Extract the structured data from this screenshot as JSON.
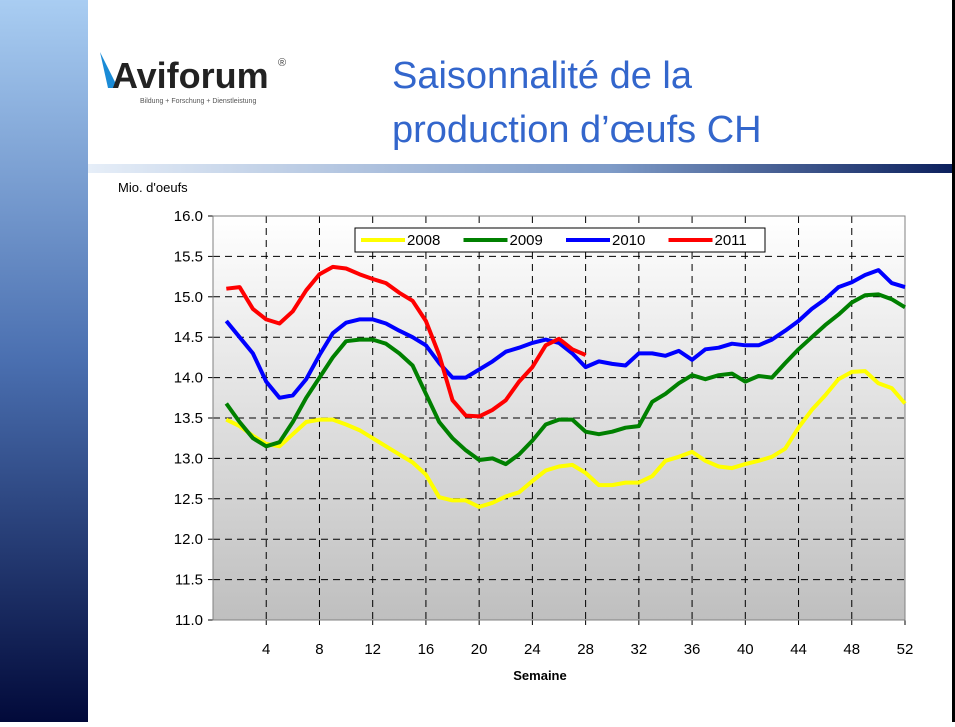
{
  "slide": {
    "title_lines": [
      "Saisonnalité de la",
      "production d’œufs CH"
    ],
    "logo": "Aviforum",
    "logo_mark": "®",
    "logo_tagline": "Bildung + Forschung + Dienstleistung"
  },
  "chart_data": {
    "type": "line",
    "ylabel": "Mio. d'oeufs",
    "xlabel": "Semaine",
    "x": [
      1,
      2,
      3,
      4,
      5,
      6,
      7,
      8,
      9,
      10,
      11,
      12,
      13,
      14,
      15,
      16,
      17,
      18,
      19,
      20,
      21,
      22,
      23,
      24,
      25,
      26,
      27,
      28,
      29,
      30,
      31,
      32,
      33,
      34,
      35,
      36,
      37,
      38,
      39,
      40,
      41,
      42,
      43,
      44,
      45,
      46,
      47,
      48,
      49,
      50,
      51,
      52
    ],
    "xlim": [
      0,
      52
    ],
    "xticks": [
      4,
      8,
      12,
      16,
      20,
      24,
      28,
      32,
      36,
      40,
      44,
      48,
      52
    ],
    "ylim": [
      11,
      16
    ],
    "yticks": [
      {
        "value": 11,
        "label": "11.0"
      },
      {
        "value": 11.5,
        "label": "11.5"
      },
      {
        "value": 12,
        "label": "12.0"
      },
      {
        "value": 12.5,
        "label": "12.5"
      },
      {
        "value": 13,
        "label": "13.0"
      },
      {
        "value": 13.5,
        "label": "13.5"
      },
      {
        "value": 14,
        "label": "14.0"
      },
      {
        "value": 14.5,
        "label": "14.5"
      },
      {
        "value": 15,
        "label": "15.0"
      },
      {
        "value": 15.5,
        "label": "15.5"
      },
      {
        "value": 16,
        "label": "16.0"
      }
    ],
    "grid": true,
    "legend": "top",
    "series": [
      {
        "name": "2008",
        "color": "#ffff00",
        "values": [
          13.48,
          13.4,
          13.28,
          13.18,
          13.15,
          13.3,
          13.45,
          13.48,
          13.48,
          13.42,
          13.35,
          13.25,
          13.15,
          13.05,
          12.95,
          12.8,
          12.52,
          12.48,
          12.48,
          12.4,
          12.45,
          12.53,
          12.58,
          12.72,
          12.85,
          12.9,
          12.92,
          12.82,
          12.67,
          12.67,
          12.7,
          12.7,
          12.78,
          12.97,
          13.02,
          13.08,
          12.97,
          12.9,
          12.88,
          12.93,
          12.97,
          13.02,
          13.12,
          13.38,
          13.6,
          13.78,
          13.98,
          14.07,
          14.08,
          13.93,
          13.87,
          13.68
        ]
      },
      {
        "name": "2009",
        "color": "#008000",
        "values": [
          13.68,
          13.45,
          13.25,
          13.15,
          13.2,
          13.45,
          13.75,
          14.0,
          14.25,
          14.45,
          14.47,
          14.47,
          14.42,
          14.3,
          14.15,
          13.8,
          13.45,
          13.25,
          13.1,
          12.98,
          13.0,
          12.93,
          13.05,
          13.22,
          13.42,
          13.48,
          13.48,
          13.33,
          13.3,
          13.33,
          13.38,
          13.4,
          13.7,
          13.8,
          13.93,
          14.03,
          13.98,
          14.03,
          14.05,
          13.95,
          14.02,
          14.0,
          14.18,
          14.35,
          14.5,
          14.65,
          14.78,
          14.93,
          15.02,
          15.03,
          14.97,
          14.87
        ]
      },
      {
        "name": "2010",
        "color": "#0000ff",
        "values": [
          14.7,
          14.5,
          14.3,
          13.95,
          13.75,
          13.78,
          13.98,
          14.28,
          14.55,
          14.68,
          14.72,
          14.72,
          14.67,
          14.58,
          14.5,
          14.4,
          14.18,
          14.0,
          14.0,
          14.1,
          14.2,
          14.32,
          14.37,
          14.43,
          14.47,
          14.43,
          14.3,
          14.13,
          14.2,
          14.17,
          14.15,
          14.3,
          14.3,
          14.27,
          14.33,
          14.22,
          14.35,
          14.37,
          14.42,
          14.4,
          14.4,
          14.47,
          14.58,
          14.7,
          14.85,
          14.97,
          15.12,
          15.18,
          15.27,
          15.33,
          15.17,
          15.12
        ]
      },
      {
        "name": "2011",
        "color": "#ff0000",
        "values": [
          15.1,
          15.12,
          14.85,
          14.72,
          14.67,
          14.82,
          15.08,
          15.28,
          15.37,
          15.35,
          15.28,
          15.22,
          15.17,
          15.05,
          14.95,
          14.7,
          14.28,
          13.72,
          13.53,
          13.52,
          13.6,
          13.72,
          13.95,
          14.13,
          14.4,
          14.48,
          14.35,
          14.28,
          null,
          null,
          null,
          null,
          null,
          null,
          null,
          null,
          null,
          null,
          null,
          null,
          null,
          null,
          null,
          null,
          null,
          null,
          null,
          null,
          null,
          null,
          null,
          null
        ]
      }
    ]
  }
}
